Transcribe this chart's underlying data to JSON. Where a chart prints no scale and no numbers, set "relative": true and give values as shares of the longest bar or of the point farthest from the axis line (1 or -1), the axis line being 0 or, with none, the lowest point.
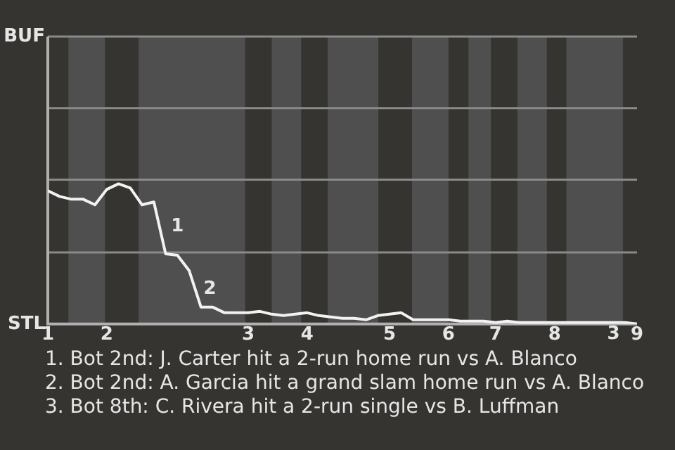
{
  "chart_data": {
    "type": "line",
    "relative": true,
    "categories": [
      "1",
      null,
      null,
      null,
      null,
      "2",
      null,
      null,
      null,
      null,
      null,
      null,
      null,
      null,
      null,
      null,
      null,
      "3",
      null,
      null,
      null,
      null,
      "4",
      null,
      null,
      null,
      null,
      null,
      null,
      "5",
      null,
      null,
      null,
      null,
      "6",
      null,
      null,
      null,
      "7",
      null,
      null,
      null,
      null,
      "8",
      null,
      null,
      null,
      null,
      null,
      null,
      "9"
    ],
    "series": [
      {
        "color": "#f2f2f2",
        "values": [
          0.95,
          0.91,
          0.89,
          0.89,
          0.85,
          0.96,
          1,
          0.97,
          0.85,
          0.87,
          0.5,
          0.49,
          0.38,
          0.12,
          0.12,
          0.08,
          0.08,
          0.08,
          0.09,
          0.07,
          0.06,
          0.07,
          0.08,
          0.06,
          0.05,
          0.04,
          0.04,
          0.03,
          0.06,
          0.07,
          0.08,
          0.03,
          0.03,
          0.03,
          0.03,
          0.02,
          0.02,
          0.02,
          0.01,
          0.02,
          0.01,
          0.01,
          0.01,
          0.01,
          0.01,
          0.01,
          0.01,
          0.01,
          0.01,
          0.01,
          0
        ]
      }
    ],
    "legend": false,
    "marker": "none",
    "line_style": "solid",
    "ref_lines": [
      {
        "axis": "y",
        "value": 0.51,
        "color": "#8a8a8a"
      },
      {
        "axis": "y",
        "value": 1.03,
        "color": "#8a8a8a"
      },
      {
        "axis": "y",
        "value": 1.54,
        "color": "#8a8a8a"
      },
      {
        "axis": "y",
        "value": 2.05,
        "color": "#8a8a8a"
      }
    ],
    "annotations": [
      "BUF",
      "STL",
      "1",
      "2",
      "3",
      "1. Bot 2nd: J. Carter hit a 2-run home run vs A. Blanco",
      "2. Bot 2nd: A. Garcia hit a grand slam home run vs A. Blanco",
      "3. Bot 8th: C. Rivera hit a 2-run single vs B. Luffman"
    ]
  }
}
